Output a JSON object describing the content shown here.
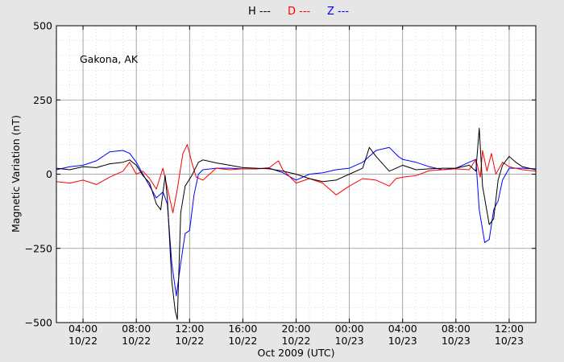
{
  "legend": [
    {
      "label": "H ---",
      "color": "#000000"
    },
    {
      "label": "D ---",
      "color": "#ff0000"
    },
    {
      "label": "Z ---",
      "color": "#0000ff"
    }
  ],
  "chart_data": {
    "type": "line",
    "annotation": "Gakona, AK",
    "xlabel": "Oct 2009 (UTC)",
    "ylabel": "Magnetic Variation (nT)",
    "xlim": [
      "2009-10-22T02:00",
      "2009-10-23T14:00"
    ],
    "ylim": [
      -500,
      500
    ],
    "yticks": [
      500,
      250,
      0,
      -250,
      -500
    ],
    "ytick_labels": [
      "500",
      "250",
      "0",
      "−250",
      "−500"
    ],
    "xticks": [
      {
        "time": "2009-10-22T04:00",
        "line1": "04:00",
        "line2": "10/22"
      },
      {
        "time": "2009-10-22T08:00",
        "line1": "08:00",
        "line2": "10/22"
      },
      {
        "time": "2009-10-22T12:00",
        "line1": "12:00",
        "line2": "10/22"
      },
      {
        "time": "2009-10-22T16:00",
        "line1": "16:00",
        "line2": "10/22"
      },
      {
        "time": "2009-10-22T20:00",
        "line1": "20:00",
        "line2": "10/22"
      },
      {
        "time": "2009-10-23T00:00",
        "line1": "00:00",
        "line2": "10/23"
      },
      {
        "time": "2009-10-23T04:00",
        "line1": "04:00",
        "line2": "10/23"
      },
      {
        "time": "2009-10-23T08:00",
        "line1": "08:00",
        "line2": "10/23"
      },
      {
        "time": "2009-10-23T12:00",
        "line1": "12:00",
        "line2": "10/23"
      }
    ],
    "grid": true,
    "legend_position": "top-center",
    "series": [
      {
        "name": "H",
        "color": "#000000",
        "points": [
          [
            "2009-10-22T02:00",
            20
          ],
          [
            "2009-10-22T03:00",
            15
          ],
          [
            "2009-10-22T04:00",
            25
          ],
          [
            "2009-10-22T05:00",
            22
          ],
          [
            "2009-10-22T06:00",
            35
          ],
          [
            "2009-10-22T07:00",
            40
          ],
          [
            "2009-10-22T07:30",
            48
          ],
          [
            "2009-10-22T08:00",
            30
          ],
          [
            "2009-10-22T08:30",
            -5
          ],
          [
            "2009-10-22T09:00",
            -30
          ],
          [
            "2009-10-22T09:30",
            -100
          ],
          [
            "2009-10-22T09:50",
            -120
          ],
          [
            "2009-10-22T10:10",
            -5
          ],
          [
            "2009-10-22T10:20",
            -80
          ],
          [
            "2009-10-22T10:40",
            -360
          ],
          [
            "2009-10-22T10:55",
            -460
          ],
          [
            "2009-10-22T11:05",
            -490
          ],
          [
            "2009-10-22T11:20",
            -130
          ],
          [
            "2009-10-22T11:40",
            -40
          ],
          [
            "2009-10-22T12:10",
            -5
          ],
          [
            "2009-10-22T12:40",
            40
          ],
          [
            "2009-10-22T13:00",
            48
          ],
          [
            "2009-10-22T14:00",
            38
          ],
          [
            "2009-10-22T15:00",
            30
          ],
          [
            "2009-10-22T16:00",
            22
          ],
          [
            "2009-10-22T17:00",
            20
          ],
          [
            "2009-10-22T18:00",
            18
          ],
          [
            "2009-10-22T19:00",
            10
          ],
          [
            "2009-10-22T20:00",
            0
          ],
          [
            "2009-10-22T21:00",
            -15
          ],
          [
            "2009-10-22T22:00",
            -25
          ],
          [
            "2009-10-22T23:00",
            -20
          ],
          [
            "2009-10-23T00:00",
            0
          ],
          [
            "2009-10-23T01:00",
            20
          ],
          [
            "2009-10-23T01:30",
            90
          ],
          [
            "2009-10-23T02:00",
            60
          ],
          [
            "2009-10-23T03:00",
            10
          ],
          [
            "2009-10-23T04:00",
            30
          ],
          [
            "2009-10-23T05:00",
            15
          ],
          [
            "2009-10-23T06:00",
            18
          ],
          [
            "2009-10-23T07:00",
            20
          ],
          [
            "2009-10-23T08:00",
            20
          ],
          [
            "2009-10-23T09:00",
            30
          ],
          [
            "2009-10-23T09:30",
            10
          ],
          [
            "2009-10-23T09:45",
            155
          ],
          [
            "2009-10-23T10:00",
            -40
          ],
          [
            "2009-10-23T10:30",
            -170
          ],
          [
            "2009-10-23T10:50",
            -150
          ],
          [
            "2009-10-23T11:10",
            -20
          ],
          [
            "2009-10-23T11:30",
            30
          ],
          [
            "2009-10-23T12:00",
            60
          ],
          [
            "2009-10-23T12:30",
            40
          ],
          [
            "2009-10-23T13:00",
            25
          ],
          [
            "2009-10-23T14:00",
            15
          ]
        ]
      },
      {
        "name": "D",
        "color": "#ff0000",
        "points": [
          [
            "2009-10-22T02:00",
            -25
          ],
          [
            "2009-10-22T03:00",
            -30
          ],
          [
            "2009-10-22T04:00",
            -20
          ],
          [
            "2009-10-22T05:00",
            -35
          ],
          [
            "2009-10-22T06:00",
            -10
          ],
          [
            "2009-10-22T07:00",
            10
          ],
          [
            "2009-10-22T07:30",
            40
          ],
          [
            "2009-10-22T08:00",
            0
          ],
          [
            "2009-10-22T08:30",
            10
          ],
          [
            "2009-10-22T09:00",
            -15
          ],
          [
            "2009-10-22T09:30",
            -50
          ],
          [
            "2009-10-22T10:00",
            20
          ],
          [
            "2009-10-22T10:30",
            -80
          ],
          [
            "2009-10-22T10:45",
            -130
          ],
          [
            "2009-10-22T11:05",
            -50
          ],
          [
            "2009-10-22T11:30",
            70
          ],
          [
            "2009-10-22T11:50",
            100
          ],
          [
            "2009-10-22T12:10",
            40
          ],
          [
            "2009-10-22T12:30",
            -10
          ],
          [
            "2009-10-22T13:00",
            -20
          ],
          [
            "2009-10-22T13:30",
            0
          ],
          [
            "2009-10-22T14:00",
            20
          ],
          [
            "2009-10-22T15:00",
            15
          ],
          [
            "2009-10-22T16:00",
            18
          ],
          [
            "2009-10-22T17:00",
            18
          ],
          [
            "2009-10-22T18:00",
            22
          ],
          [
            "2009-10-22T18:40",
            45
          ],
          [
            "2009-10-22T19:00",
            15
          ],
          [
            "2009-10-22T20:00",
            -30
          ],
          [
            "2009-10-22T21:00",
            -15
          ],
          [
            "2009-10-22T22:00",
            -30
          ],
          [
            "2009-10-22T23:00",
            -70
          ],
          [
            "2009-10-23T00:00",
            -40
          ],
          [
            "2009-10-23T01:00",
            -15
          ],
          [
            "2009-10-23T02:00",
            -20
          ],
          [
            "2009-10-23T03:00",
            -40
          ],
          [
            "2009-10-23T03:30",
            -15
          ],
          [
            "2009-10-23T04:00",
            -10
          ],
          [
            "2009-10-23T05:00",
            -5
          ],
          [
            "2009-10-23T06:00",
            12
          ],
          [
            "2009-10-23T07:00",
            15
          ],
          [
            "2009-10-23T08:00",
            18
          ],
          [
            "2009-10-23T09:00",
            15
          ],
          [
            "2009-10-23T09:30",
            50
          ],
          [
            "2009-10-23T09:50",
            -10
          ],
          [
            "2009-10-23T10:00",
            80
          ],
          [
            "2009-10-23T10:20",
            10
          ],
          [
            "2009-10-23T10:40",
            70
          ],
          [
            "2009-10-23T11:00",
            0
          ],
          [
            "2009-10-23T11:30",
            40
          ],
          [
            "2009-10-23T12:00",
            25
          ],
          [
            "2009-10-23T13:00",
            15
          ],
          [
            "2009-10-23T14:00",
            10
          ]
        ]
      },
      {
        "name": "Z",
        "color": "#0000ff",
        "points": [
          [
            "2009-10-22T02:00",
            15
          ],
          [
            "2009-10-22T03:00",
            25
          ],
          [
            "2009-10-22T04:00",
            30
          ],
          [
            "2009-10-22T05:00",
            45
          ],
          [
            "2009-10-22T06:00",
            75
          ],
          [
            "2009-10-22T07:00",
            80
          ],
          [
            "2009-10-22T07:30",
            70
          ],
          [
            "2009-10-22T08:00",
            40
          ],
          [
            "2009-10-22T08:30",
            0
          ],
          [
            "2009-10-22T09:00",
            -40
          ],
          [
            "2009-10-22T09:30",
            -80
          ],
          [
            "2009-10-22T10:00",
            -60
          ],
          [
            "2009-10-22T10:20",
            -100
          ],
          [
            "2009-10-22T10:40",
            -300
          ],
          [
            "2009-10-22T11:00",
            -410
          ],
          [
            "2009-10-22T11:20",
            -300
          ],
          [
            "2009-10-22T11:40",
            -200
          ],
          [
            "2009-10-22T12:00",
            -190
          ],
          [
            "2009-10-22T12:20",
            -70
          ],
          [
            "2009-10-22T12:40",
            0
          ],
          [
            "2009-10-22T13:00",
            15
          ],
          [
            "2009-10-22T14:00",
            20
          ],
          [
            "2009-10-22T15:00",
            20
          ],
          [
            "2009-10-22T16:00",
            18
          ],
          [
            "2009-10-22T17:00",
            18
          ],
          [
            "2009-10-22T18:00",
            20
          ],
          [
            "2009-10-22T19:00",
            5
          ],
          [
            "2009-10-22T20:00",
            -20
          ],
          [
            "2009-10-22T21:00",
            0
          ],
          [
            "2009-10-22T22:00",
            5
          ],
          [
            "2009-10-22T23:00",
            15
          ],
          [
            "2009-10-23T00:00",
            20
          ],
          [
            "2009-10-23T01:00",
            40
          ],
          [
            "2009-10-23T01:30",
            60
          ],
          [
            "2009-10-23T02:00",
            80
          ],
          [
            "2009-10-23T03:00",
            90
          ],
          [
            "2009-10-23T03:40",
            60
          ],
          [
            "2009-10-23T04:00",
            50
          ],
          [
            "2009-10-23T05:00",
            40
          ],
          [
            "2009-10-23T06:00",
            25
          ],
          [
            "2009-10-23T07:00",
            15
          ],
          [
            "2009-10-23T08:00",
            20
          ],
          [
            "2009-10-23T09:00",
            40
          ],
          [
            "2009-10-23T09:30",
            50
          ],
          [
            "2009-10-23T09:45",
            -120
          ],
          [
            "2009-10-23T10:10",
            -230
          ],
          [
            "2009-10-23T10:30",
            -220
          ],
          [
            "2009-10-23T10:50",
            -120
          ],
          [
            "2009-10-23T11:10",
            -90
          ],
          [
            "2009-10-23T11:30",
            -20
          ],
          [
            "2009-10-23T12:00",
            20
          ],
          [
            "2009-10-23T13:00",
            20
          ],
          [
            "2009-10-23T14:00",
            18
          ]
        ]
      }
    ]
  }
}
